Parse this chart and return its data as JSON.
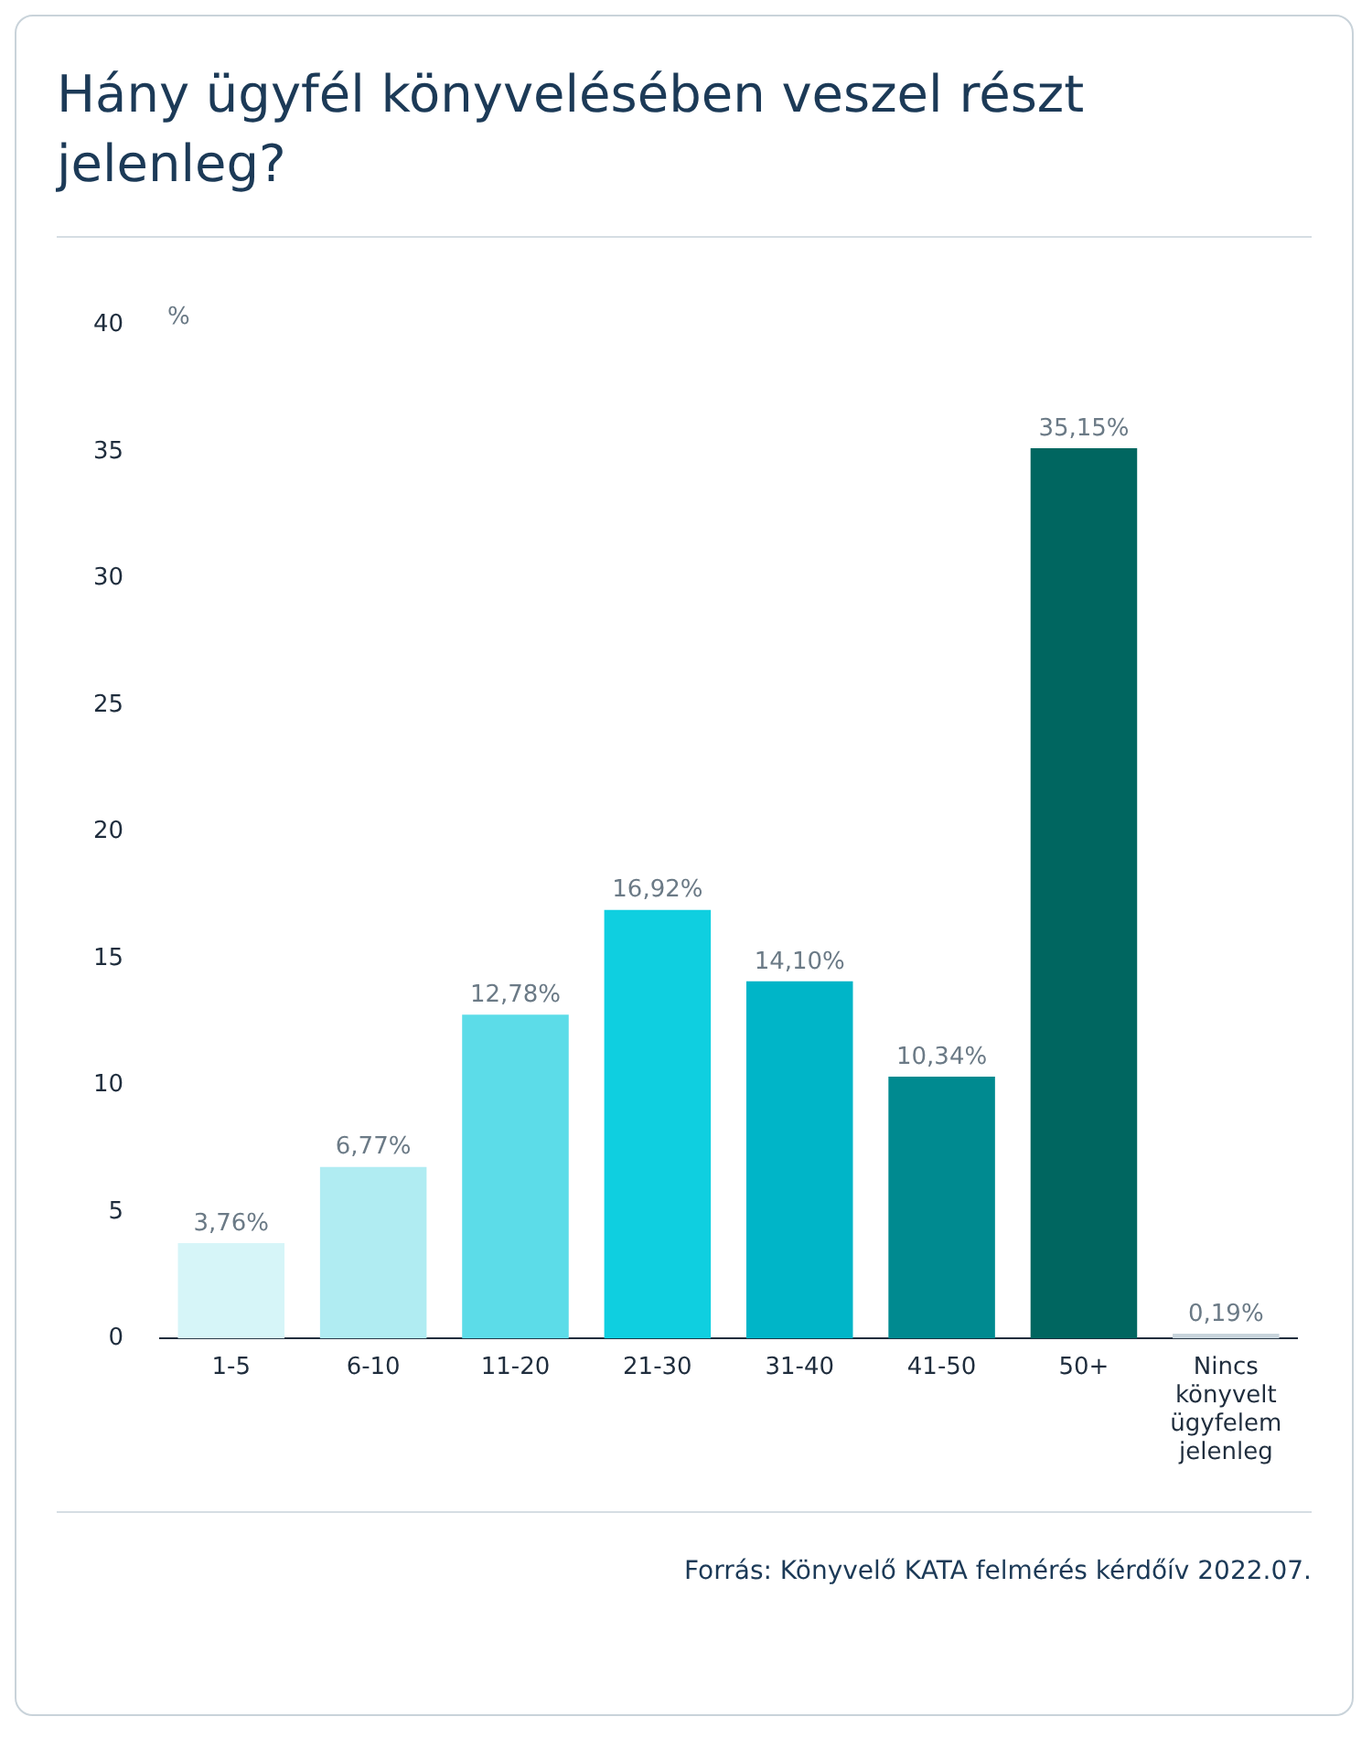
{
  "chart_data": {
    "type": "bar",
    "title": "Hány ügyfél könyvelésében veszel részt jelenleg?",
    "ylabel": "%",
    "categories": [
      "1-5",
      "6-10",
      "11-20",
      "21-30",
      "31-40",
      "41-50",
      "50+",
      "Nincs könyvelt ügyfelem jelenleg"
    ],
    "values": [
      3.76,
      6.77,
      12.78,
      16.92,
      14.1,
      10.34,
      35.15,
      0.19
    ],
    "colors": [
      "#d6f5f8",
      "#b0ecf2",
      "#5cdce8",
      "#0fcfe0",
      "#00b5c8",
      "#008a90",
      "#006660",
      "#c8d4dc"
    ],
    "value_labels": [
      "3,76%",
      "6,77%",
      "12,78%",
      "16,92%",
      "14,10%",
      "10,34%",
      "35,15%",
      "0,19%"
    ],
    "ylim": [
      0,
      40
    ],
    "yticks": [
      0,
      5,
      10,
      15,
      20,
      25,
      30,
      35,
      40
    ],
    "grid": false,
    "legend": false,
    "annotations": [
      "Forrás: Könyvelő KATA felmérés kérdőív 2022.07."
    ]
  }
}
